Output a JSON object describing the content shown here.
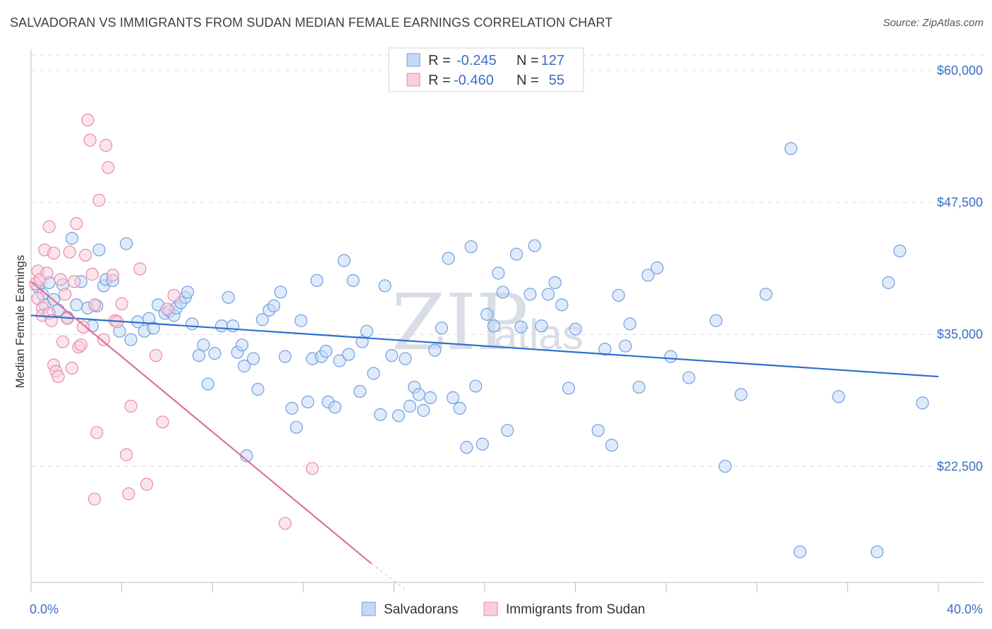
{
  "title": "SALVADORAN VS IMMIGRANTS FROM SUDAN MEDIAN FEMALE EARNINGS CORRELATION CHART",
  "source": "Source: ZipAtlas.com",
  "watermark": {
    "zip": "ZIP",
    "atlas": "atlas"
  },
  "colors": {
    "blue": "#6fa0e0",
    "blue_fill": "#c5d9f5",
    "pink": "#e98aaa",
    "pink_fill": "#f8cfdc",
    "blue_line": "#2f6fcf",
    "pink_line": "#e0709a",
    "tick_text": "#3a6fc4"
  },
  "legend": {
    "r_label": "R =",
    "n_label": "N =",
    "rows": [
      {
        "r": "-0.245",
        "n": "127"
      },
      {
        "r": "-0.460",
        "n": "55"
      }
    ]
  },
  "chart_data": {
    "type": "scatter",
    "ylabel": "Median Female Earnings",
    "xlim": [
      0,
      40
    ],
    "ylim": [
      11500,
      62000
    ],
    "x_tick_labels": [
      "0.0%",
      "40.0%"
    ],
    "y_ticks": [
      22500,
      35000,
      47500,
      60000
    ],
    "y_tick_labels": [
      "$22,500",
      "$35,000",
      "$47,500",
      "$60,000"
    ],
    "grid": true,
    "series": [
      {
        "name": "Salvadorans",
        "trend": [
          [
            0,
            36800
          ],
          [
            40,
            31000
          ]
        ],
        "points": [
          [
            0.3,
            39500
          ],
          [
            0.5,
            38800
          ],
          [
            0.6,
            37800
          ],
          [
            0.8,
            39900
          ],
          [
            1.0,
            38300
          ],
          [
            1.2,
            37300
          ],
          [
            1.4,
            39700
          ],
          [
            1.6,
            36600
          ],
          [
            1.8,
            44100
          ],
          [
            2.0,
            37800
          ],
          [
            2.2,
            40000
          ],
          [
            2.5,
            37500
          ],
          [
            2.7,
            35800
          ],
          [
            2.9,
            37700
          ],
          [
            3.0,
            43000
          ],
          [
            3.2,
            39600
          ],
          [
            3.3,
            40200
          ],
          [
            3.6,
            40100
          ],
          [
            3.9,
            35300
          ],
          [
            4.2,
            43600
          ],
          [
            4.4,
            34500
          ],
          [
            4.7,
            36200
          ],
          [
            5.0,
            35300
          ],
          [
            5.2,
            36500
          ],
          [
            5.4,
            35600
          ],
          [
            5.6,
            37800
          ],
          [
            5.9,
            37000
          ],
          [
            6.1,
            37200
          ],
          [
            6.3,
            36800
          ],
          [
            6.4,
            37500
          ],
          [
            6.6,
            38000
          ],
          [
            6.8,
            38500
          ],
          [
            6.9,
            39000
          ],
          [
            7.1,
            36000
          ],
          [
            7.4,
            33000
          ],
          [
            7.6,
            34000
          ],
          [
            7.8,
            30300
          ],
          [
            8.1,
            33200
          ],
          [
            8.4,
            35800
          ],
          [
            8.7,
            38500
          ],
          [
            8.9,
            35800
          ],
          [
            9.1,
            33300
          ],
          [
            9.3,
            34000
          ],
          [
            9.4,
            32000
          ],
          [
            9.5,
            23500
          ],
          [
            9.8,
            32700
          ],
          [
            10.0,
            29800
          ],
          [
            10.2,
            36400
          ],
          [
            10.5,
            37300
          ],
          [
            10.7,
            37700
          ],
          [
            11.0,
            39000
          ],
          [
            11.2,
            32900
          ],
          [
            11.5,
            28000
          ],
          [
            11.7,
            26200
          ],
          [
            11.9,
            36300
          ],
          [
            12.2,
            28600
          ],
          [
            12.4,
            32700
          ],
          [
            12.6,
            40100
          ],
          [
            12.8,
            32900
          ],
          [
            13.0,
            33400
          ],
          [
            13.1,
            28600
          ],
          [
            13.4,
            28100
          ],
          [
            13.6,
            32500
          ],
          [
            13.8,
            42000
          ],
          [
            14.0,
            33100
          ],
          [
            14.2,
            40100
          ],
          [
            14.5,
            29600
          ],
          [
            14.6,
            34300
          ],
          [
            14.8,
            35300
          ],
          [
            15.1,
            31300
          ],
          [
            15.4,
            27400
          ],
          [
            15.6,
            39600
          ],
          [
            15.9,
            33000
          ],
          [
            16.2,
            27300
          ],
          [
            16.5,
            32700
          ],
          [
            16.7,
            28200
          ],
          [
            16.9,
            30000
          ],
          [
            17.1,
            29300
          ],
          [
            17.3,
            27800
          ],
          [
            17.6,
            29000
          ],
          [
            17.8,
            33500
          ],
          [
            18.1,
            35600
          ],
          [
            18.4,
            42200
          ],
          [
            18.6,
            29000
          ],
          [
            18.9,
            28000
          ],
          [
            19.2,
            24300
          ],
          [
            19.4,
            43300
          ],
          [
            19.6,
            30100
          ],
          [
            19.9,
            24600
          ],
          [
            20.1,
            36900
          ],
          [
            20.4,
            35800
          ],
          [
            20.6,
            40800
          ],
          [
            20.8,
            39000
          ],
          [
            21.0,
            25900
          ],
          [
            21.4,
            42600
          ],
          [
            21.6,
            35700
          ],
          [
            22.0,
            38800
          ],
          [
            22.2,
            43400
          ],
          [
            22.5,
            35800
          ],
          [
            22.8,
            38800
          ],
          [
            23.1,
            39900
          ],
          [
            23.4,
            37800
          ],
          [
            23.7,
            29900
          ],
          [
            24.0,
            35500
          ],
          [
            25.0,
            25900
          ],
          [
            25.3,
            33600
          ],
          [
            25.6,
            24500
          ],
          [
            25.9,
            38700
          ],
          [
            26.2,
            33900
          ],
          [
            26.4,
            36000
          ],
          [
            26.8,
            30000
          ],
          [
            27.2,
            40600
          ],
          [
            27.6,
            41300
          ],
          [
            28.2,
            32900
          ],
          [
            29.0,
            30900
          ],
          [
            30.2,
            36300
          ],
          [
            30.6,
            22500
          ],
          [
            31.3,
            29300
          ],
          [
            32.4,
            38800
          ],
          [
            33.5,
            52600
          ],
          [
            33.9,
            14400
          ],
          [
            35.6,
            29100
          ],
          [
            37.3,
            14400
          ],
          [
            37.8,
            39900
          ],
          [
            38.3,
            42900
          ],
          [
            39.3,
            28500
          ]
        ]
      },
      {
        "name": "Immigrants from Sudan",
        "trend": [
          [
            0,
            40000
          ],
          [
            15,
            13300
          ]
        ],
        "points": [
          [
            0.2,
            39800
          ],
          [
            0.3,
            38400
          ],
          [
            0.3,
            41000
          ],
          [
            0.4,
            40200
          ],
          [
            0.5,
            37500
          ],
          [
            0.5,
            36800
          ],
          [
            0.6,
            43000
          ],
          [
            0.7,
            40800
          ],
          [
            0.8,
            37000
          ],
          [
            0.8,
            45200
          ],
          [
            0.9,
            36300
          ],
          [
            1.0,
            42700
          ],
          [
            1.0,
            32100
          ],
          [
            1.1,
            31500
          ],
          [
            1.2,
            31000
          ],
          [
            1.3,
            40200
          ],
          [
            1.4,
            34300
          ],
          [
            1.5,
            38800
          ],
          [
            1.6,
            36500
          ],
          [
            1.7,
            42800
          ],
          [
            1.8,
            31800
          ],
          [
            1.9,
            40000
          ],
          [
            2.0,
            45500
          ],
          [
            2.1,
            33800
          ],
          [
            2.2,
            34000
          ],
          [
            2.3,
            35700
          ],
          [
            2.4,
            42500
          ],
          [
            2.5,
            55300
          ],
          [
            2.6,
            53400
          ],
          [
            2.7,
            40700
          ],
          [
            2.8,
            37800
          ],
          [
            2.8,
            19400
          ],
          [
            2.9,
            25700
          ],
          [
            3.0,
            47700
          ],
          [
            3.2,
            34500
          ],
          [
            3.3,
            52900
          ],
          [
            3.4,
            50800
          ],
          [
            3.6,
            40600
          ],
          [
            3.7,
            36300
          ],
          [
            3.8,
            36200
          ],
          [
            4.0,
            37900
          ],
          [
            4.2,
            23600
          ],
          [
            4.3,
            19900
          ],
          [
            4.4,
            28200
          ],
          [
            4.8,
            41200
          ],
          [
            5.1,
            20800
          ],
          [
            5.5,
            33000
          ],
          [
            5.8,
            26700
          ],
          [
            6.0,
            37400
          ],
          [
            6.3,
            38700
          ],
          [
            11.2,
            17100
          ],
          [
            12.4,
            22300
          ]
        ]
      }
    ]
  },
  "bottom_legend": [
    {
      "label": "Salvadorans"
    },
    {
      "label": "Immigrants from Sudan"
    }
  ]
}
